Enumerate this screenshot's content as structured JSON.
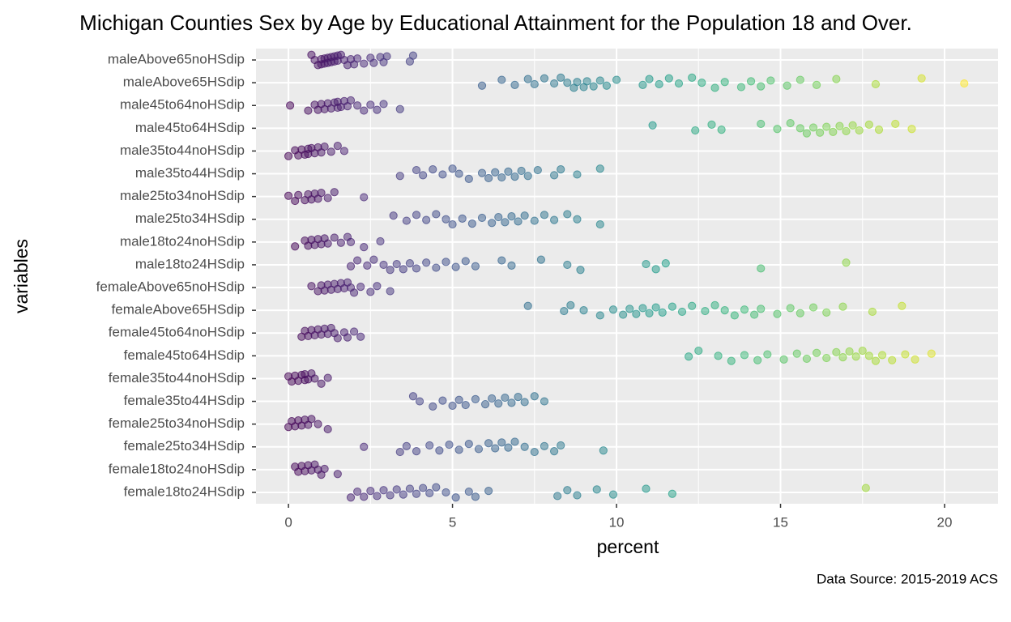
{
  "chart_data": {
    "type": "strip",
    "title": "Michigan Counties Sex by Age by Educational Attainment for the Population 18 and Over.",
    "x_label": "percent",
    "y_label": "variables",
    "caption": "Data Source: 2015-2019 ACS",
    "color_scale": "viridis",
    "opacity": 0.5,
    "grid": true,
    "xlim": [
      -0.99,
      21.63
    ],
    "xticks": [
      0,
      5,
      10,
      15,
      20
    ],
    "xminor": [
      2.5,
      7.5,
      12.5,
      17.5
    ],
    "categories": [
      "maleAbove65noHSdip",
      "maleAbove65HSdip",
      "male45to64noHSdip",
      "male45to64HSdip",
      "male35to44noHSdip",
      "male35to44HSdip",
      "male25to34noHSdip",
      "male25to34HSdip",
      "male18to24noHSdip",
      "male18to24HSdip",
      "femaleAbove65noHSdip",
      "femaleAbove65HSdip",
      "female45to64noHSdip",
      "female45to64HSdip",
      "female35to44noHSdip",
      "female35to44HSdip",
      "female25to34noHSdip",
      "female25to34HSdip",
      "female18to24noHSdip",
      "female18to24HSdip"
    ],
    "values": [
      [
        0.7,
        0.8,
        0.9,
        1.0,
        1.0,
        1.1,
        1.1,
        1.2,
        1.2,
        1.3,
        1.3,
        1.4,
        1.4,
        1.5,
        1.5,
        1.6,
        1.7,
        1.8,
        1.9,
        2.0,
        2.1,
        2.3,
        2.5,
        2.6,
        2.8,
        2.9,
        3.0,
        3.7,
        3.8
      ],
      [
        5.9,
        6.5,
        6.9,
        7.3,
        7.5,
        7.8,
        8.1,
        8.3,
        8.5,
        8.7,
        8.8,
        9.0,
        9.1,
        9.3,
        9.5,
        9.7,
        10.0,
        10.8,
        11.0,
        11.3,
        11.6,
        11.9,
        12.3,
        12.6,
        13.0,
        13.3,
        13.8,
        14.1,
        14.4,
        14.7,
        15.2,
        15.6,
        16.1,
        16.7,
        17.9,
        19.3,
        20.6
      ],
      [
        0.05,
        0.6,
        0.8,
        0.9,
        1.0,
        1.1,
        1.2,
        1.3,
        1.4,
        1.5,
        1.5,
        1.6,
        1.7,
        1.8,
        1.9,
        2.1,
        2.3,
        2.5,
        2.7,
        2.9,
        3.4
      ],
      [
        11.1,
        12.4,
        12.9,
        13.2,
        14.4,
        14.9,
        15.3,
        15.6,
        15.8,
        16.0,
        16.2,
        16.4,
        16.6,
        16.8,
        17.0,
        17.2,
        17.4,
        17.7,
        18.0,
        18.5,
        19.0
      ],
      [
        0.0,
        0.2,
        0.3,
        0.4,
        0.5,
        0.6,
        0.6,
        0.7,
        0.8,
        0.9,
        1.0,
        1.1,
        1.3,
        1.5,
        1.7
      ],
      [
        3.4,
        3.9,
        4.1,
        4.4,
        4.7,
        5.0,
        5.2,
        5.5,
        5.9,
        6.1,
        6.3,
        6.5,
        6.7,
        6.9,
        7.1,
        7.3,
        7.6,
        8.1,
        8.3,
        8.8,
        9.5
      ],
      [
        0.0,
        0.2,
        0.3,
        0.5,
        0.6,
        0.7,
        0.8,
        0.9,
        1.0,
        1.2,
        1.4,
        2.3
      ],
      [
        3.2,
        3.6,
        3.9,
        4.2,
        4.5,
        4.8,
        5.0,
        5.3,
        5.6,
        5.9,
        6.2,
        6.4,
        6.6,
        6.8,
        7.0,
        7.2,
        7.5,
        7.8,
        8.1,
        8.5,
        8.8,
        9.5
      ],
      [
        0.2,
        0.5,
        0.6,
        0.7,
        0.8,
        0.9,
        1.0,
        1.1,
        1.2,
        1.4,
        1.6,
        1.8,
        1.9,
        2.3,
        2.8
      ],
      [
        1.9,
        2.1,
        2.4,
        2.6,
        2.9,
        3.1,
        3.3,
        3.5,
        3.7,
        3.9,
        4.2,
        4.5,
        4.8,
        5.1,
        5.4,
        5.7,
        6.5,
        6.8,
        7.7,
        8.5,
        8.9,
        10.9,
        11.2,
        11.5,
        14.4,
        17.0
      ],
      [
        0.7,
        0.9,
        1.0,
        1.1,
        1.2,
        1.3,
        1.4,
        1.5,
        1.6,
        1.7,
        1.8,
        1.9,
        2.0,
        2.2,
        2.5,
        2.7,
        3.1
      ],
      [
        7.3,
        8.4,
        8.6,
        9.0,
        9.5,
        9.9,
        10.2,
        10.4,
        10.6,
        10.8,
        11.0,
        11.2,
        11.4,
        11.7,
        12.0,
        12.3,
        12.7,
        13.0,
        13.3,
        13.6,
        13.9,
        14.2,
        14.4,
        14.9,
        15.3,
        15.6,
        16.0,
        16.4,
        16.9,
        17.8,
        18.7
      ],
      [
        0.4,
        0.5,
        0.6,
        0.7,
        0.8,
        0.9,
        1.0,
        1.1,
        1.2,
        1.3,
        1.4,
        1.5,
        1.7,
        1.8,
        2.0,
        2.2
      ],
      [
        12.2,
        12.5,
        13.1,
        13.5,
        13.9,
        14.3,
        14.6,
        15.1,
        15.5,
        15.8,
        16.1,
        16.4,
        16.7,
        16.9,
        17.1,
        17.3,
        17.5,
        17.7,
        17.9,
        18.1,
        18.4,
        18.8,
        19.1,
        19.6
      ],
      [
        0.0,
        0.1,
        0.2,
        0.3,
        0.4,
        0.5,
        0.5,
        0.6,
        0.7,
        0.8,
        1.0,
        1.2
      ],
      [
        3.8,
        4.0,
        4.4,
        4.7,
        5.0,
        5.2,
        5.4,
        5.7,
        6.0,
        6.2,
        6.4,
        6.6,
        6.8,
        7.0,
        7.2,
        7.5,
        7.8
      ],
      [
        0.0,
        0.1,
        0.2,
        0.3,
        0.4,
        0.5,
        0.6,
        0.7,
        0.9,
        1.2
      ],
      [
        2.3,
        3.4,
        3.6,
        3.9,
        4.3,
        4.6,
        4.9,
        5.2,
        5.5,
        5.8,
        6.1,
        6.3,
        6.5,
        6.7,
        6.9,
        7.2,
        7.5,
        7.8,
        8.1,
        8.3,
        9.6
      ],
      [
        0.2,
        0.3,
        0.4,
        0.5,
        0.6,
        0.7,
        0.8,
        0.9,
        1.0,
        1.1,
        1.5
      ],
      [
        1.9,
        2.1,
        2.3,
        2.5,
        2.7,
        2.9,
        3.1,
        3.3,
        3.5,
        3.7,
        3.9,
        4.1,
        4.3,
        4.5,
        4.8,
        5.1,
        5.5,
        5.7,
        6.1,
        8.2,
        8.5,
        8.8,
        9.4,
        9.9,
        10.9,
        11.7,
        17.6
      ]
    ]
  }
}
